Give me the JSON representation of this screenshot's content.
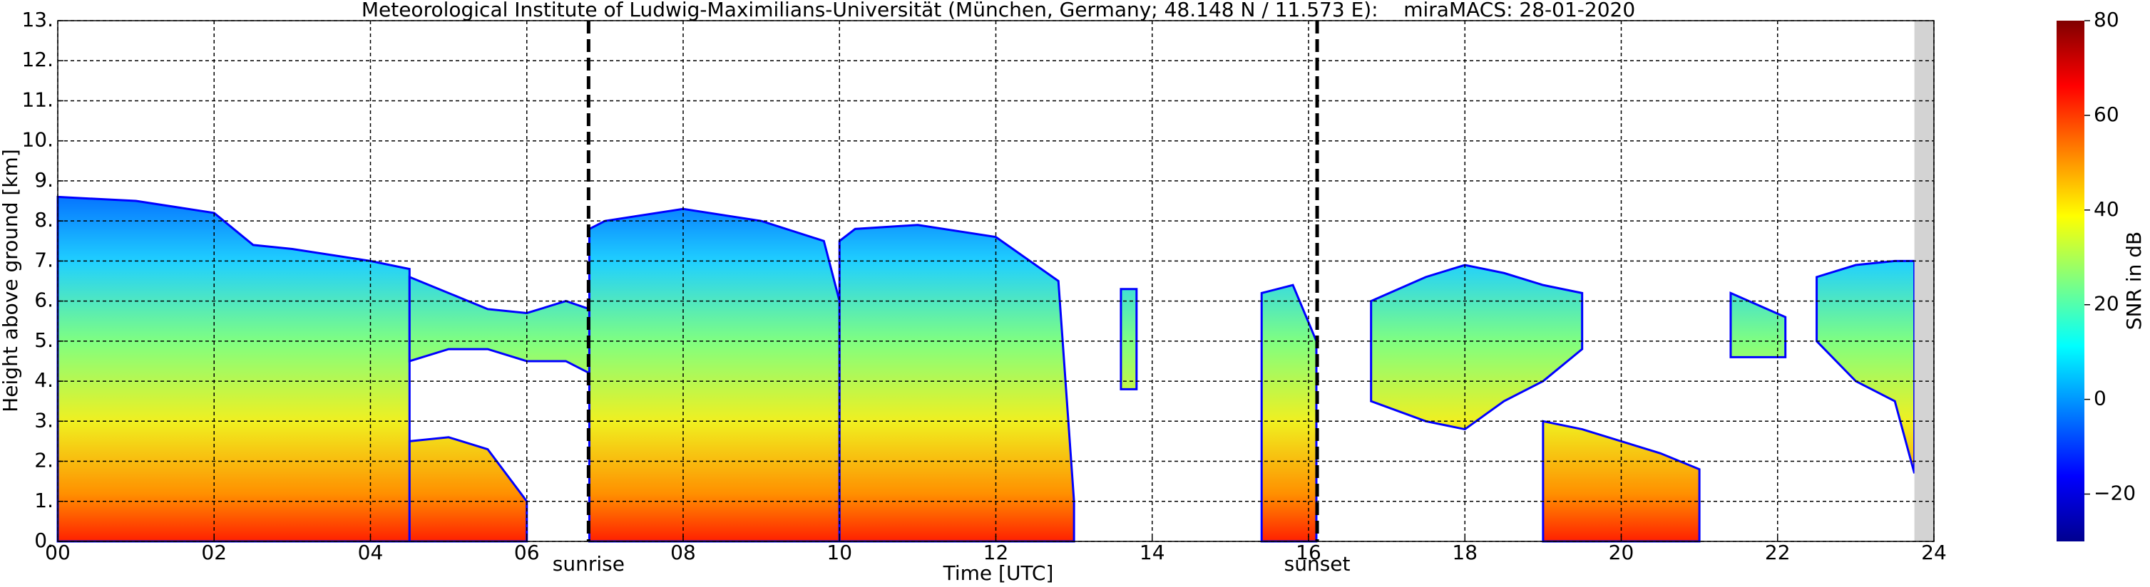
{
  "chart_data": {
    "type": "time-height",
    "title": "Meteorological Institute of Ludwig-Maximilians-Universität (München, Germany; 48.148 N / 11.573 E):    miraMACS: 28-01-2020",
    "x_label": "Time [UTC]",
    "y_label": "Height above ground [km]",
    "xlim": [
      0,
      24
    ],
    "ylim": [
      0,
      13
    ],
    "xticks": [
      {
        "value": 0,
        "label": "00"
      },
      {
        "value": 2,
        "label": "02"
      },
      {
        "value": 4,
        "label": "04"
      },
      {
        "value": 6,
        "label": "06"
      },
      {
        "value": 8,
        "label": "08"
      },
      {
        "value": 10,
        "label": "10"
      },
      {
        "value": 12,
        "label": "12"
      },
      {
        "value": 14,
        "label": "14"
      },
      {
        "value": 16,
        "label": "16"
      },
      {
        "value": 18,
        "label": "18"
      },
      {
        "value": 20,
        "label": "20"
      },
      {
        "value": 22,
        "label": "22"
      },
      {
        "value": 24,
        "label": "24"
      }
    ],
    "yticks": [
      {
        "value": 0,
        "label": "0."
      },
      {
        "value": 1,
        "label": "1."
      },
      {
        "value": 2,
        "label": "2."
      },
      {
        "value": 3,
        "label": "3."
      },
      {
        "value": 4,
        "label": "4."
      },
      {
        "value": 5,
        "label": "5."
      },
      {
        "value": 6,
        "label": "6."
      },
      {
        "value": 7,
        "label": "7."
      },
      {
        "value": 8,
        "label": "8."
      },
      {
        "value": 9,
        "label": "9."
      },
      {
        "value": 10,
        "label": "10."
      },
      {
        "value": 11,
        "label": "11."
      },
      {
        "value": 12,
        "label": "12."
      },
      {
        "value": 13,
        "label": "13."
      }
    ],
    "grid": true,
    "annotations": [
      {
        "text": "sunrise",
        "x": 6.79
      },
      {
        "text": "sunset",
        "x": 16.11
      }
    ],
    "missing": [
      23.75,
      24
    ],
    "echoes": [
      {
        "x": [
          0,
          1,
          2,
          2.5,
          3,
          4,
          4.5
        ],
        "top": [
          8.6,
          8.5,
          8.2,
          7.4,
          7.3,
          7.0,
          6.8
        ],
        "base": [
          0,
          0,
          0,
          0,
          0,
          0,
          0
        ]
      },
      {
        "x": [
          4.5,
          5,
          5.5,
          6,
          6.5,
          6.8
        ],
        "top": [
          6.6,
          6.2,
          5.8,
          5.7,
          6.0,
          5.8
        ],
        "base": [
          4.5,
          4.8,
          4.8,
          4.5,
          4.5,
          4.2
        ]
      },
      {
        "x": [
          4.5,
          5,
          5.5,
          6
        ],
        "top": [
          2.5,
          2.6,
          2.3,
          1.0
        ],
        "base": [
          0,
          0,
          0,
          0
        ]
      },
      {
        "x": [
          6.8,
          7,
          8,
          9,
          9.8,
          10
        ],
        "top": [
          7.8,
          8.0,
          8.3,
          8.0,
          7.5,
          6.0
        ],
        "base": [
          0,
          0,
          0,
          0,
          0,
          0
        ]
      },
      {
        "x": [
          10,
          10.2,
          11,
          12,
          12.8,
          13
        ],
        "top": [
          7.5,
          7.8,
          7.9,
          7.6,
          6.5,
          1.0
        ],
        "base": [
          0,
          0,
          0,
          0,
          0,
          0
        ]
      },
      {
        "x": [
          13.6,
          13.8
        ],
        "top": [
          6.3,
          6.3
        ],
        "base": [
          3.8,
          3.8
        ]
      },
      {
        "x": [
          15.4,
          15.8,
          16.1
        ],
        "top": [
          6.2,
          6.4,
          5.0
        ],
        "base": [
          0,
          0,
          0
        ]
      },
      {
        "x": [
          16.8,
          17.5,
          18,
          18.5,
          19,
          19.5
        ],
        "top": [
          6.0,
          6.6,
          6.9,
          6.7,
          6.4,
          6.2
        ],
        "base": [
          3.5,
          3.0,
          2.8,
          3.5,
          4.0,
          4.8
        ]
      },
      {
        "x": [
          19,
          19.5,
          20,
          20.5,
          21
        ],
        "top": [
          3.0,
          2.8,
          2.5,
          2.2,
          1.8
        ],
        "base": [
          0,
          0,
          0,
          0,
          0
        ]
      },
      {
        "x": [
          21.4,
          22.1
        ],
        "top": [
          6.2,
          5.6
        ],
        "base": [
          4.6,
          4.6
        ]
      },
      {
        "x": [
          22.5,
          23,
          23.5,
          23.75
        ],
        "top": [
          6.6,
          6.9,
          7.0,
          7.0
        ],
        "base": [
          5.0,
          4.0,
          3.5,
          1.7
        ]
      }
    ],
    "colorbar": {
      "label": "SNR in dB",
      "lim": [
        -30,
        80
      ],
      "ticks": [
        {
          "value": -20,
          "label": "−20"
        },
        0,
        20,
        40,
        60,
        80
      ],
      "colors": [
        "#00008f",
        "#0000ff",
        "#0080ff",
        "#00ffff",
        "#80ff80",
        "#ffff00",
        "#ff8000",
        "#ff0000",
        "#800000"
      ]
    }
  }
}
